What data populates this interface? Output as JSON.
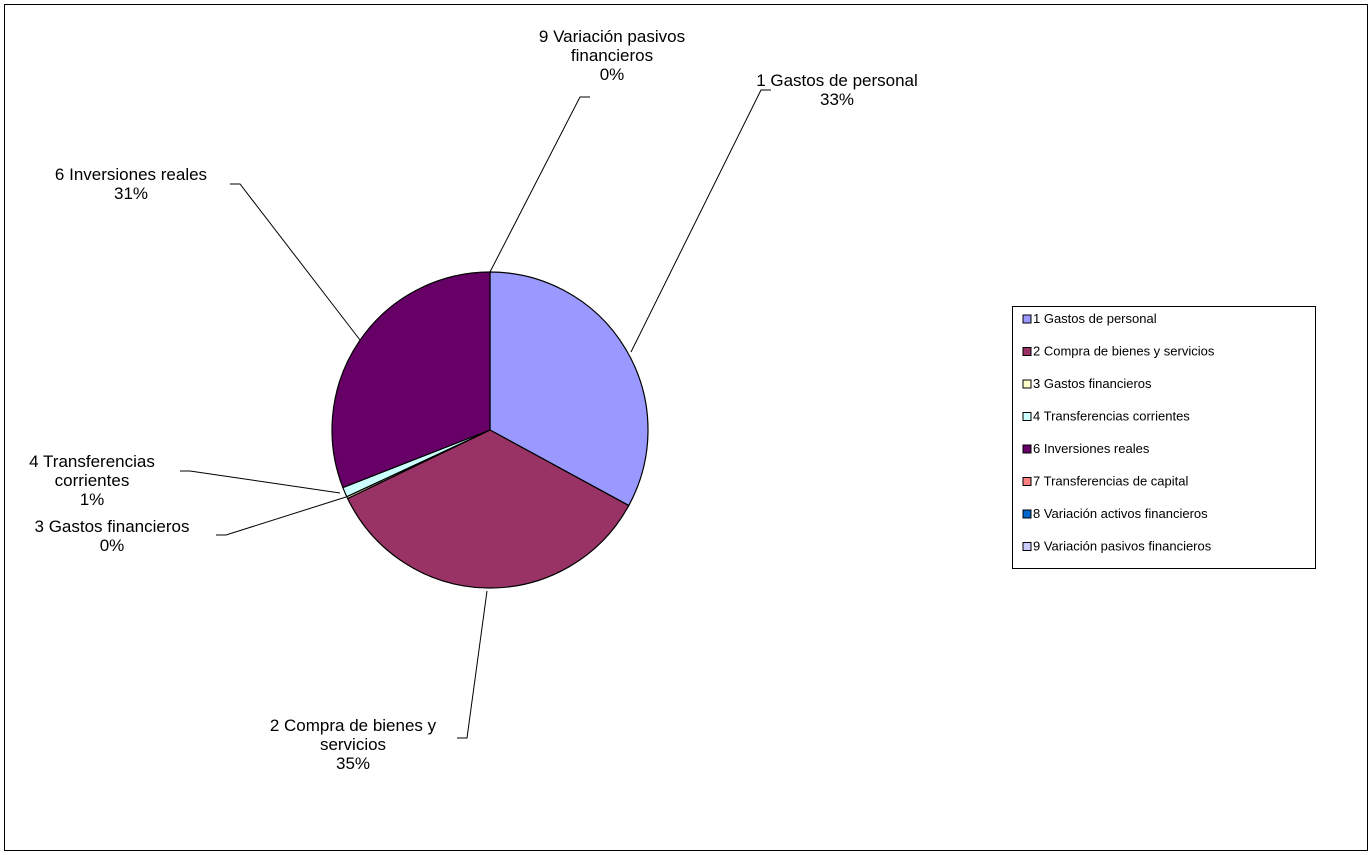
{
  "chart_data": {
    "type": "pie",
    "title": "",
    "slices": [
      {
        "label_line1": "1 Gastos de personal",
        "label_line2": "",
        "legend": "1 Gastos de personal",
        "percent_text": "33%",
        "value": 33,
        "color": "#9999ff"
      },
      {
        "label_line1": "2 Compra de bienes y",
        "label_line2": "servicios",
        "legend": "2 Compra de bienes y servicios",
        "percent_text": "35%",
        "value": 35,
        "color": "#993366"
      },
      {
        "label_line1": "3 Gastos financieros",
        "label_line2": "",
        "legend": "3 Gastos financieros",
        "percent_text": "0%",
        "value": 0.2,
        "color": "#ffffcc"
      },
      {
        "label_line1": "4 Transferencias",
        "label_line2": "corrientes",
        "legend": "4 Transferencias corrientes",
        "percent_text": "1%",
        "value": 1,
        "color": "#ccffff"
      },
      {
        "label_line1": "6 Inversiones reales",
        "label_line2": "",
        "legend": "6 Inversiones reales",
        "percent_text": "31%",
        "value": 31,
        "color": "#660066"
      },
      {
        "label_line1": "",
        "label_line2": "",
        "legend": "7 Transferencias de capital",
        "percent_text": "",
        "value": 0,
        "color": "#ff8080"
      },
      {
        "label_line1": "",
        "label_line2": "",
        "legend": "8 Variación activos financieros",
        "percent_text": "",
        "value": 0,
        "color": "#0066cc"
      },
      {
        "label_line1": "9 Variación pasivos",
        "label_line2": "financieros",
        "legend": "9 Variación pasivos financieros",
        "percent_text": "0%",
        "value": 0,
        "color": "#ccccff"
      }
    ],
    "legend_position": "right"
  }
}
